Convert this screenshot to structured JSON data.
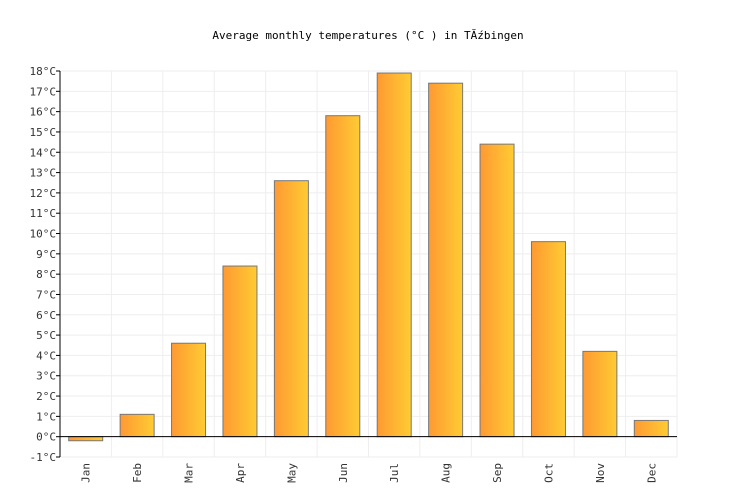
{
  "chart_data": {
    "type": "bar",
    "title": "Average monthly temperatures (°C ) in TĂźbingen",
    "xlabel": "",
    "ylabel": "",
    "categories": [
      "Jan",
      "Feb",
      "Mar",
      "Apr",
      "May",
      "Jun",
      "Jul",
      "Aug",
      "Sep",
      "Oct",
      "Nov",
      "Dec"
    ],
    "values": [
      -0.2,
      1.1,
      4.6,
      8.4,
      12.6,
      15.8,
      17.9,
      17.4,
      14.4,
      9.6,
      4.2,
      0.8
    ],
    "ylim": [
      -1,
      18
    ],
    "yticks": [
      "-1°C",
      "0°C",
      "1°C",
      "2°C",
      "3°C",
      "4°C",
      "5°C",
      "6°C",
      "7°C",
      "8°C",
      "9°C",
      "10°C",
      "11°C",
      "12°C",
      "13°C",
      "14°C",
      "15°C",
      "16°C",
      "17°C",
      "18°C"
    ],
    "grid": true,
    "legend": "none",
    "colors": {
      "bar_start": "#ff9933",
      "bar_end": "#ffcc33",
      "bar_border": "#777777",
      "grid": "#eeeeee"
    }
  }
}
